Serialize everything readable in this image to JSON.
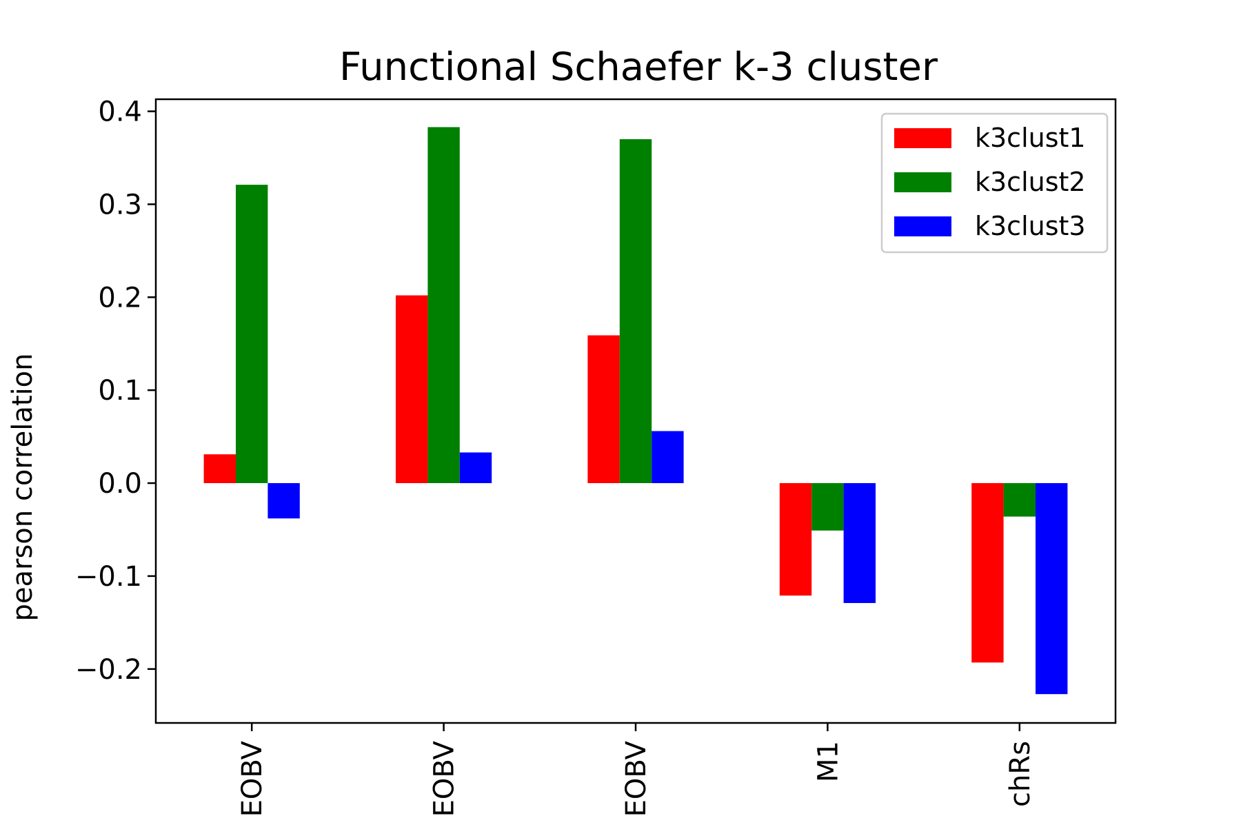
{
  "chart_data": {
    "type": "bar",
    "title": "Functional Schaefer k-3 cluster",
    "ylabel": "pearson correlation",
    "xlabel": "",
    "categories": [
      "EOBV",
      "EOBV",
      "EOBV",
      "M1",
      "chRs"
    ],
    "series": [
      {
        "name": "k3clust1",
        "color": "#ff0000",
        "values": [
          0.031,
          0.202,
          0.159,
          -0.121,
          -0.193
        ]
      },
      {
        "name": "k3clust2",
        "color": "#008000",
        "values": [
          0.321,
          0.383,
          0.37,
          -0.051,
          -0.036
        ]
      },
      {
        "name": "k3clust3",
        "color": "#0000ff",
        "values": [
          -0.038,
          0.033,
          0.056,
          -0.129,
          -0.227
        ]
      }
    ],
    "ylim": [
      -0.258,
      0.413
    ],
    "yticks": [
      0.4,
      0.3,
      0.2,
      0.1,
      0.0,
      -0.1,
      -0.2
    ],
    "ytick_labels": [
      "0.4",
      "0.3",
      "0.2",
      "0.1",
      "0.0",
      "−0.1",
      "−0.2"
    ],
    "legend_placement": "top-right",
    "grid": false
  }
}
